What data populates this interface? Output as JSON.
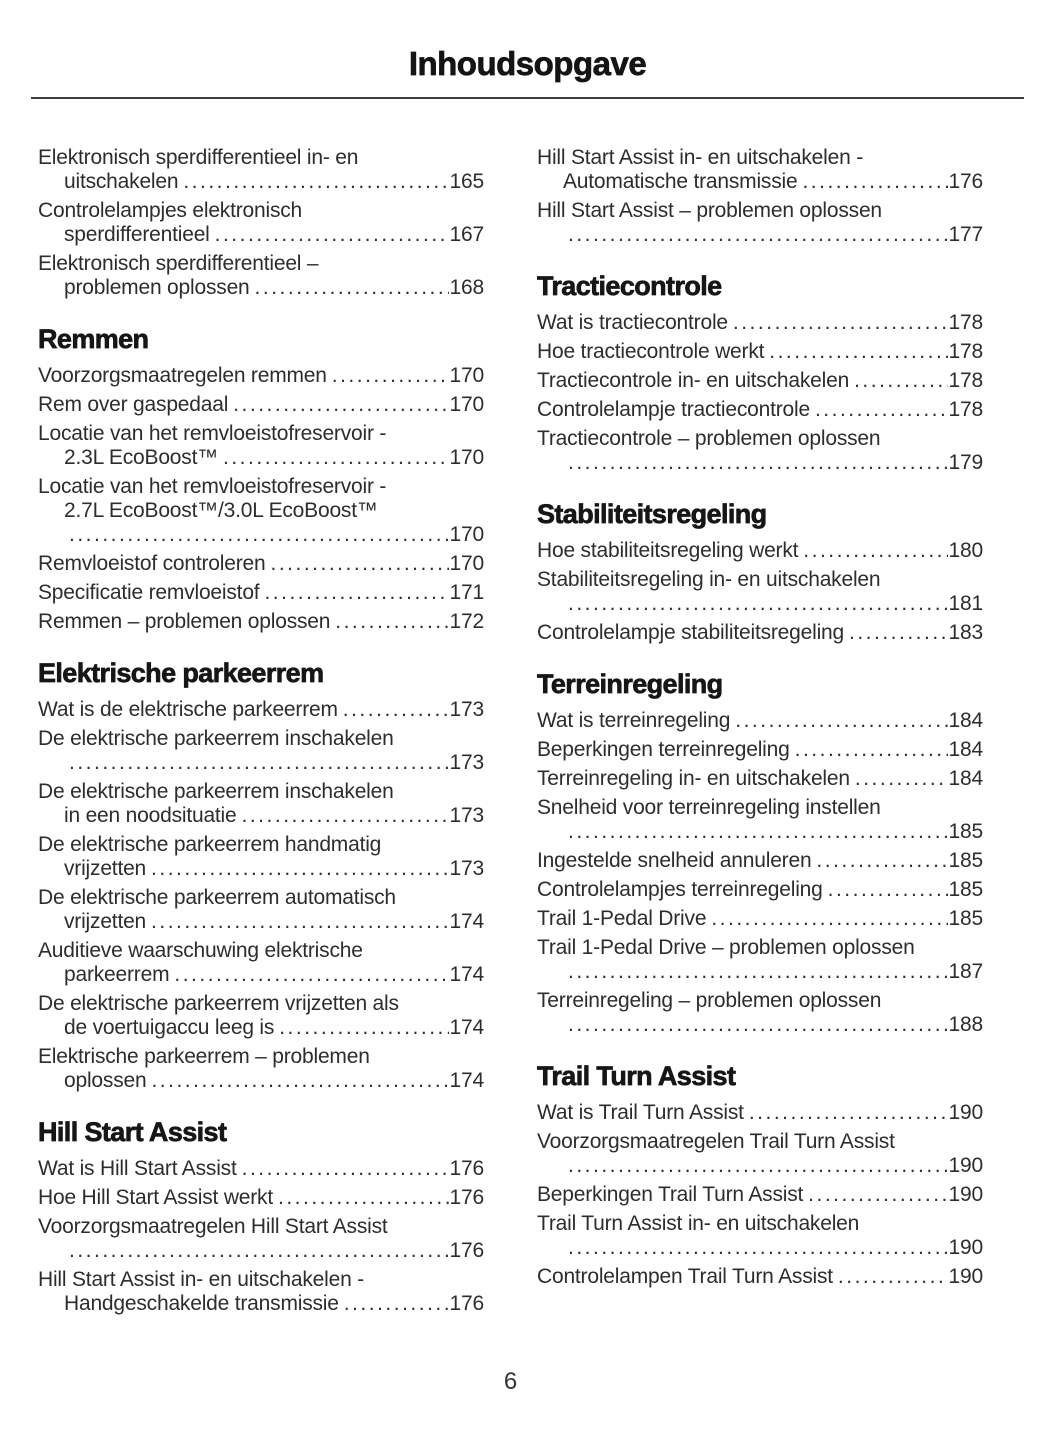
{
  "page_title": "Inhoudsopgave",
  "footer_page_number": "6",
  "text_color": "#2d2d2d",
  "heading_color": "#161616",
  "columns": [
    {
      "sections": [
        {
          "heading": "",
          "entries": [
            {
              "lines": [
                "Elektronisch sperdifferentieel in- en",
                "uitschakelen"
              ],
              "page": "165"
            },
            {
              "lines": [
                "Controlelampjes elektronisch",
                "sperdifferentieel"
              ],
              "page": "167"
            },
            {
              "lines": [
                "Elektronisch sperdifferentieel –",
                "problemen oplossen"
              ],
              "page": "168"
            }
          ]
        },
        {
          "heading": "Remmen",
          "entries": [
            {
              "lines": [
                "Voorzorgsmaatregelen remmen"
              ],
              "page": "170"
            },
            {
              "lines": [
                "Rem over gaspedaal"
              ],
              "page": "170"
            },
            {
              "lines": [
                "Locatie van het remvloeistofreservoir -",
                "2.3L EcoBoost™"
              ],
              "page": "170"
            },
            {
              "lines": [
                "Locatie van het remvloeistofreservoir -",
                "2.7L EcoBoost™/3.0L EcoBoost™",
                ""
              ],
              "page": "170"
            },
            {
              "lines": [
                "Remvloeistof controleren"
              ],
              "page": "170"
            },
            {
              "lines": [
                "Specificatie remvloeistof"
              ],
              "page": "171"
            },
            {
              "lines": [
                "Remmen – problemen oplossen"
              ],
              "page": "172"
            }
          ]
        },
        {
          "heading": "Elektrische parkeerrem",
          "entries": [
            {
              "lines": [
                "Wat is de elektrische parkeerrem"
              ],
              "page": "173"
            },
            {
              "lines": [
                "De elektrische parkeerrem inschakelen",
                ""
              ],
              "page": "173"
            },
            {
              "lines": [
                "De elektrische parkeerrem inschakelen",
                "in een noodsituatie"
              ],
              "page": "173"
            },
            {
              "lines": [
                "De elektrische parkeerrem handmatig",
                "vrijzetten"
              ],
              "page": "173"
            },
            {
              "lines": [
                "De elektrische parkeerrem automatisch",
                "vrijzetten"
              ],
              "page": "174"
            },
            {
              "lines": [
                "Auditieve waarschuwing elektrische",
                "parkeerrem"
              ],
              "page": "174"
            },
            {
              "lines": [
                "De elektrische parkeerrem vrijzetten als",
                "de voertuigaccu leeg is"
              ],
              "page": "174"
            },
            {
              "lines": [
                "Elektrische parkeerrem – problemen",
                "oplossen"
              ],
              "page": "174"
            }
          ]
        },
        {
          "heading": "Hill Start Assist",
          "entries": [
            {
              "lines": [
                "Wat is Hill Start Assist"
              ],
              "page": "176"
            },
            {
              "lines": [
                "Hoe Hill Start Assist werkt"
              ],
              "page": "176"
            },
            {
              "lines": [
                "Voorzorgsmaatregelen Hill Start Assist",
                ""
              ],
              "page": "176"
            },
            {
              "lines": [
                "Hill Start Assist in- en uitschakelen -",
                "Handgeschakelde transmissie"
              ],
              "page": "176"
            }
          ]
        }
      ]
    },
    {
      "sections": [
        {
          "heading": "",
          "entries": [
            {
              "lines": [
                "Hill Start Assist in- en uitschakelen -",
                "Automatische transmissie"
              ],
              "page": "176"
            },
            {
              "lines": [
                "Hill Start Assist – problemen oplossen",
                ""
              ],
              "page": "177"
            }
          ]
        },
        {
          "heading": "Tractiecontrole",
          "entries": [
            {
              "lines": [
                "Wat is tractiecontrole"
              ],
              "page": "178"
            },
            {
              "lines": [
                "Hoe tractiecontrole werkt"
              ],
              "page": "178"
            },
            {
              "lines": [
                "Tractiecontrole in- en uitschakelen"
              ],
              "page": "178"
            },
            {
              "lines": [
                "Controlelampje tractiecontrole"
              ],
              "page": "178"
            },
            {
              "lines": [
                "Tractiecontrole – problemen oplossen",
                ""
              ],
              "page": "179"
            }
          ]
        },
        {
          "heading": "Stabiliteitsregeling",
          "entries": [
            {
              "lines": [
                "Hoe stabiliteitsregeling werkt"
              ],
              "page": "180"
            },
            {
              "lines": [
                "Stabiliteitsregeling in- en uitschakelen",
                ""
              ],
              "page": "181"
            },
            {
              "lines": [
                "Controlelampje stabiliteitsregeling"
              ],
              "page": "183"
            }
          ]
        },
        {
          "heading": "Terreinregeling",
          "entries": [
            {
              "lines": [
                "Wat is terreinregeling"
              ],
              "page": "184"
            },
            {
              "lines": [
                "Beperkingen terreinregeling"
              ],
              "page": "184"
            },
            {
              "lines": [
                "Terreinregeling in- en uitschakelen"
              ],
              "page": "184"
            },
            {
              "lines": [
                "Snelheid voor terreinregeling instellen",
                ""
              ],
              "page": "185"
            },
            {
              "lines": [
                "Ingestelde snelheid annuleren"
              ],
              "page": "185"
            },
            {
              "lines": [
                "Controlelampjes terreinregeling"
              ],
              "page": "185"
            },
            {
              "lines": [
                "Trail 1-Pedal Drive"
              ],
              "page": "185"
            },
            {
              "lines": [
                "Trail 1-Pedal Drive – problemen oplossen",
                ""
              ],
              "page": "187"
            },
            {
              "lines": [
                "Terreinregeling – problemen oplossen",
                ""
              ],
              "page": "188"
            }
          ]
        },
        {
          "heading": "Trail Turn Assist",
          "entries": [
            {
              "lines": [
                "Wat is Trail Turn Assist"
              ],
              "page": "190"
            },
            {
              "lines": [
                "Voorzorgsmaatregelen Trail Turn Assist",
                ""
              ],
              "page": "190"
            },
            {
              "lines": [
                "Beperkingen Trail Turn Assist"
              ],
              "page": "190"
            },
            {
              "lines": [
                "Trail Turn Assist in- en uitschakelen",
                ""
              ],
              "page": "190"
            },
            {
              "lines": [
                "Controlelampen Trail Turn Assist"
              ],
              "page": "190"
            }
          ]
        }
      ]
    }
  ]
}
